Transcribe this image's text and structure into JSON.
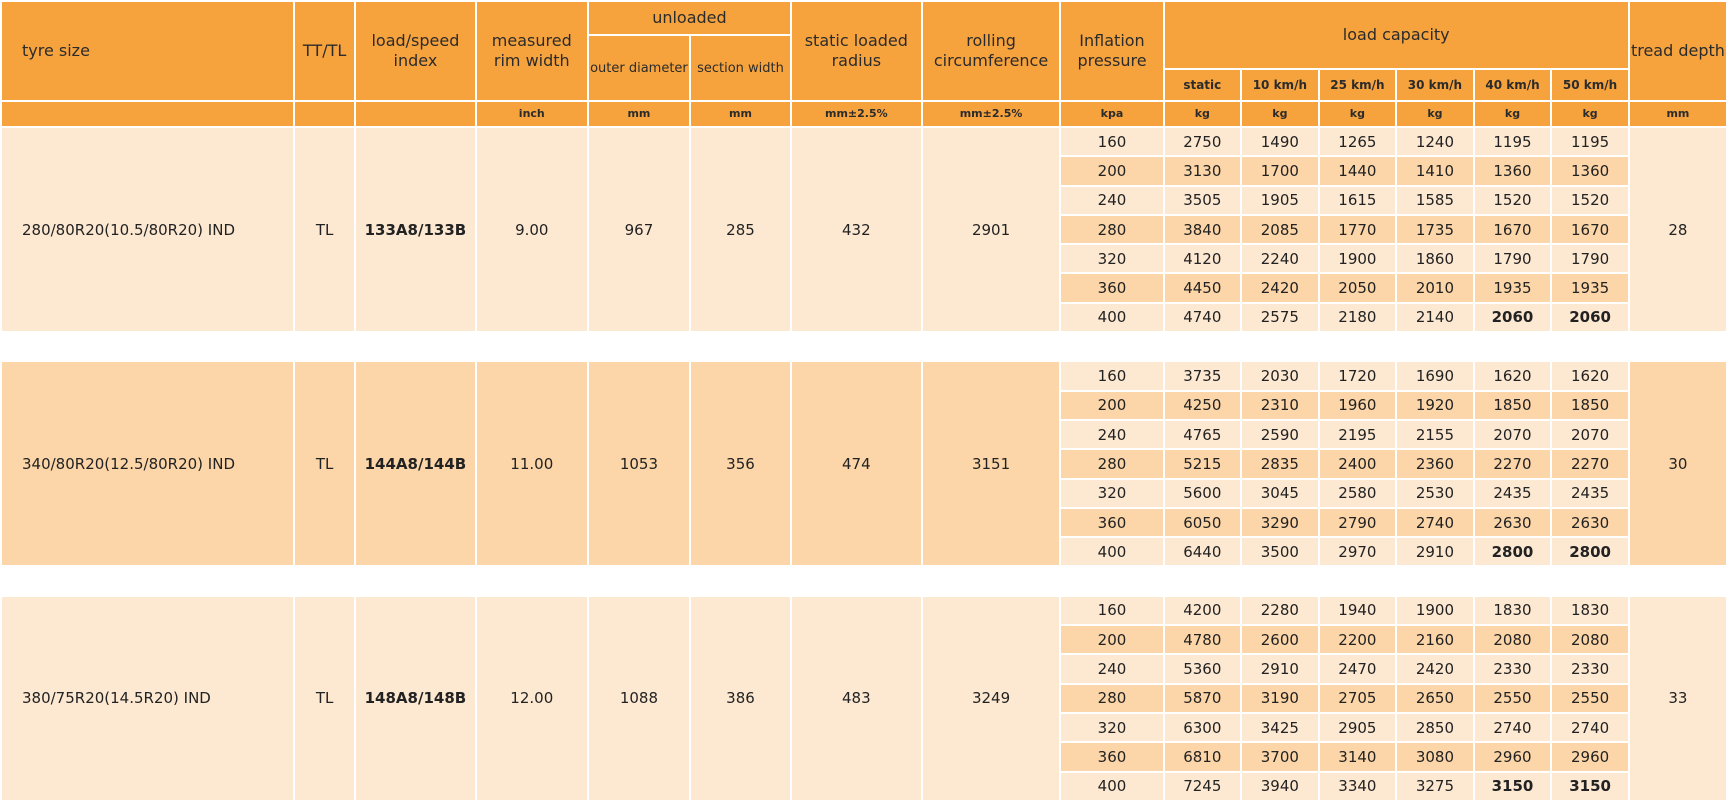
{
  "headers": {
    "tyre_size": "tyre size",
    "tt_tl": "TT/TL",
    "load_speed": "load/speed index",
    "rim_width": "measured rim width",
    "unloaded": "unloaded",
    "outer_diameter": "outer diameter",
    "section_width": "section width",
    "static_loaded_radius": "static loaded radius",
    "rolling_circumference": "rolling circumference",
    "inflation_pressure": "Inflation pressure",
    "load_capacity": "load capacity",
    "tread_depth": "tread depth",
    "lc_static": "static",
    "lc_10": "10 km/h",
    "lc_25": "25 km/h",
    "lc_30": "30 km/h",
    "lc_40": "40 km/h",
    "lc_50": "50 km/h"
  },
  "units": {
    "rim_width": "inch",
    "outer_diameter": "mm",
    "section_width": "mm",
    "static_loaded_radius": "mm±2.5%",
    "rolling_circumference": "mm±2.5%",
    "inflation_pressure": "kpa",
    "lc_static": "kg",
    "lc_10": "kg",
    "lc_25": "kg",
    "lc_30": "kg",
    "lc_40": "kg",
    "lc_50": "kg",
    "tread_depth": "mm"
  },
  "tyres": [
    {
      "size": "280/80R20(10.5/80R20) IND",
      "tt_tl": "TL",
      "load_speed": "133A8/133B",
      "rim_width": "9.00",
      "outer_diameter": "967",
      "section_width": "285",
      "static_loaded_radius": "432",
      "rolling_circumference": "2901",
      "tread_depth": "28",
      "rows": [
        [
          "160",
          "2750",
          "1490",
          "1265",
          "1240",
          "1195",
          "1195"
        ],
        [
          "200",
          "3130",
          "1700",
          "1440",
          "1410",
          "1360",
          "1360"
        ],
        [
          "240",
          "3505",
          "1905",
          "1615",
          "1585",
          "1520",
          "1520"
        ],
        [
          "280",
          "3840",
          "2085",
          "1770",
          "1735",
          "1670",
          "1670"
        ],
        [
          "320",
          "4120",
          "2240",
          "1900",
          "1860",
          "1790",
          "1790"
        ],
        [
          "360",
          "4450",
          "2420",
          "2050",
          "2010",
          "1935",
          "1935"
        ],
        [
          "400",
          "4740",
          "2575",
          "2180",
          "2140",
          "2060",
          "2060"
        ]
      ]
    },
    {
      "size": "340/80R20(12.5/80R20) IND",
      "tt_tl": "TL",
      "load_speed": "144A8/144B",
      "rim_width": "11.00",
      "outer_diameter": "1053",
      "section_width": "356",
      "static_loaded_radius": "474",
      "rolling_circumference": "3151",
      "tread_depth": "30",
      "rows": [
        [
          "160",
          "3735",
          "2030",
          "1720",
          "1690",
          "1620",
          "1620"
        ],
        [
          "200",
          "4250",
          "2310",
          "1960",
          "1920",
          "1850",
          "1850"
        ],
        [
          "240",
          "4765",
          "2590",
          "2195",
          "2155",
          "2070",
          "2070"
        ],
        [
          "280",
          "5215",
          "2835",
          "2400",
          "2360",
          "2270",
          "2270"
        ],
        [
          "320",
          "5600",
          "3045",
          "2580",
          "2530",
          "2435",
          "2435"
        ],
        [
          "360",
          "6050",
          "3290",
          "2790",
          "2740",
          "2630",
          "2630"
        ],
        [
          "400",
          "6440",
          "3500",
          "2970",
          "2910",
          "2800",
          "2800"
        ]
      ]
    },
    {
      "size": "380/75R20(14.5R20) IND",
      "tt_tl": "TL",
      "load_speed": "148A8/148B",
      "rim_width": "12.00",
      "outer_diameter": "1088",
      "section_width": "386",
      "static_loaded_radius": "483",
      "rolling_circumference": "3249",
      "tread_depth": "33",
      "rows": [
        [
          "160",
          "4200",
          "2280",
          "1940",
          "1900",
          "1830",
          "1830"
        ],
        [
          "200",
          "4780",
          "2600",
          "2200",
          "2160",
          "2080",
          "2080"
        ],
        [
          "240",
          "5360",
          "2910",
          "2470",
          "2420",
          "2330",
          "2330"
        ],
        [
          "280",
          "5870",
          "3190",
          "2705",
          "2650",
          "2550",
          "2550"
        ],
        [
          "320",
          "6300",
          "3425",
          "2905",
          "2850",
          "2740",
          "2740"
        ],
        [
          "360",
          "6810",
          "3700",
          "3140",
          "3080",
          "2960",
          "2960"
        ],
        [
          "400",
          "7245",
          "3940",
          "3340",
          "3275",
          "3150",
          "3150"
        ]
      ]
    }
  ],
  "colors": {
    "header": "#f6a33d",
    "row_light": "#fde9d2",
    "row_dark": "#fcd6a8"
  }
}
